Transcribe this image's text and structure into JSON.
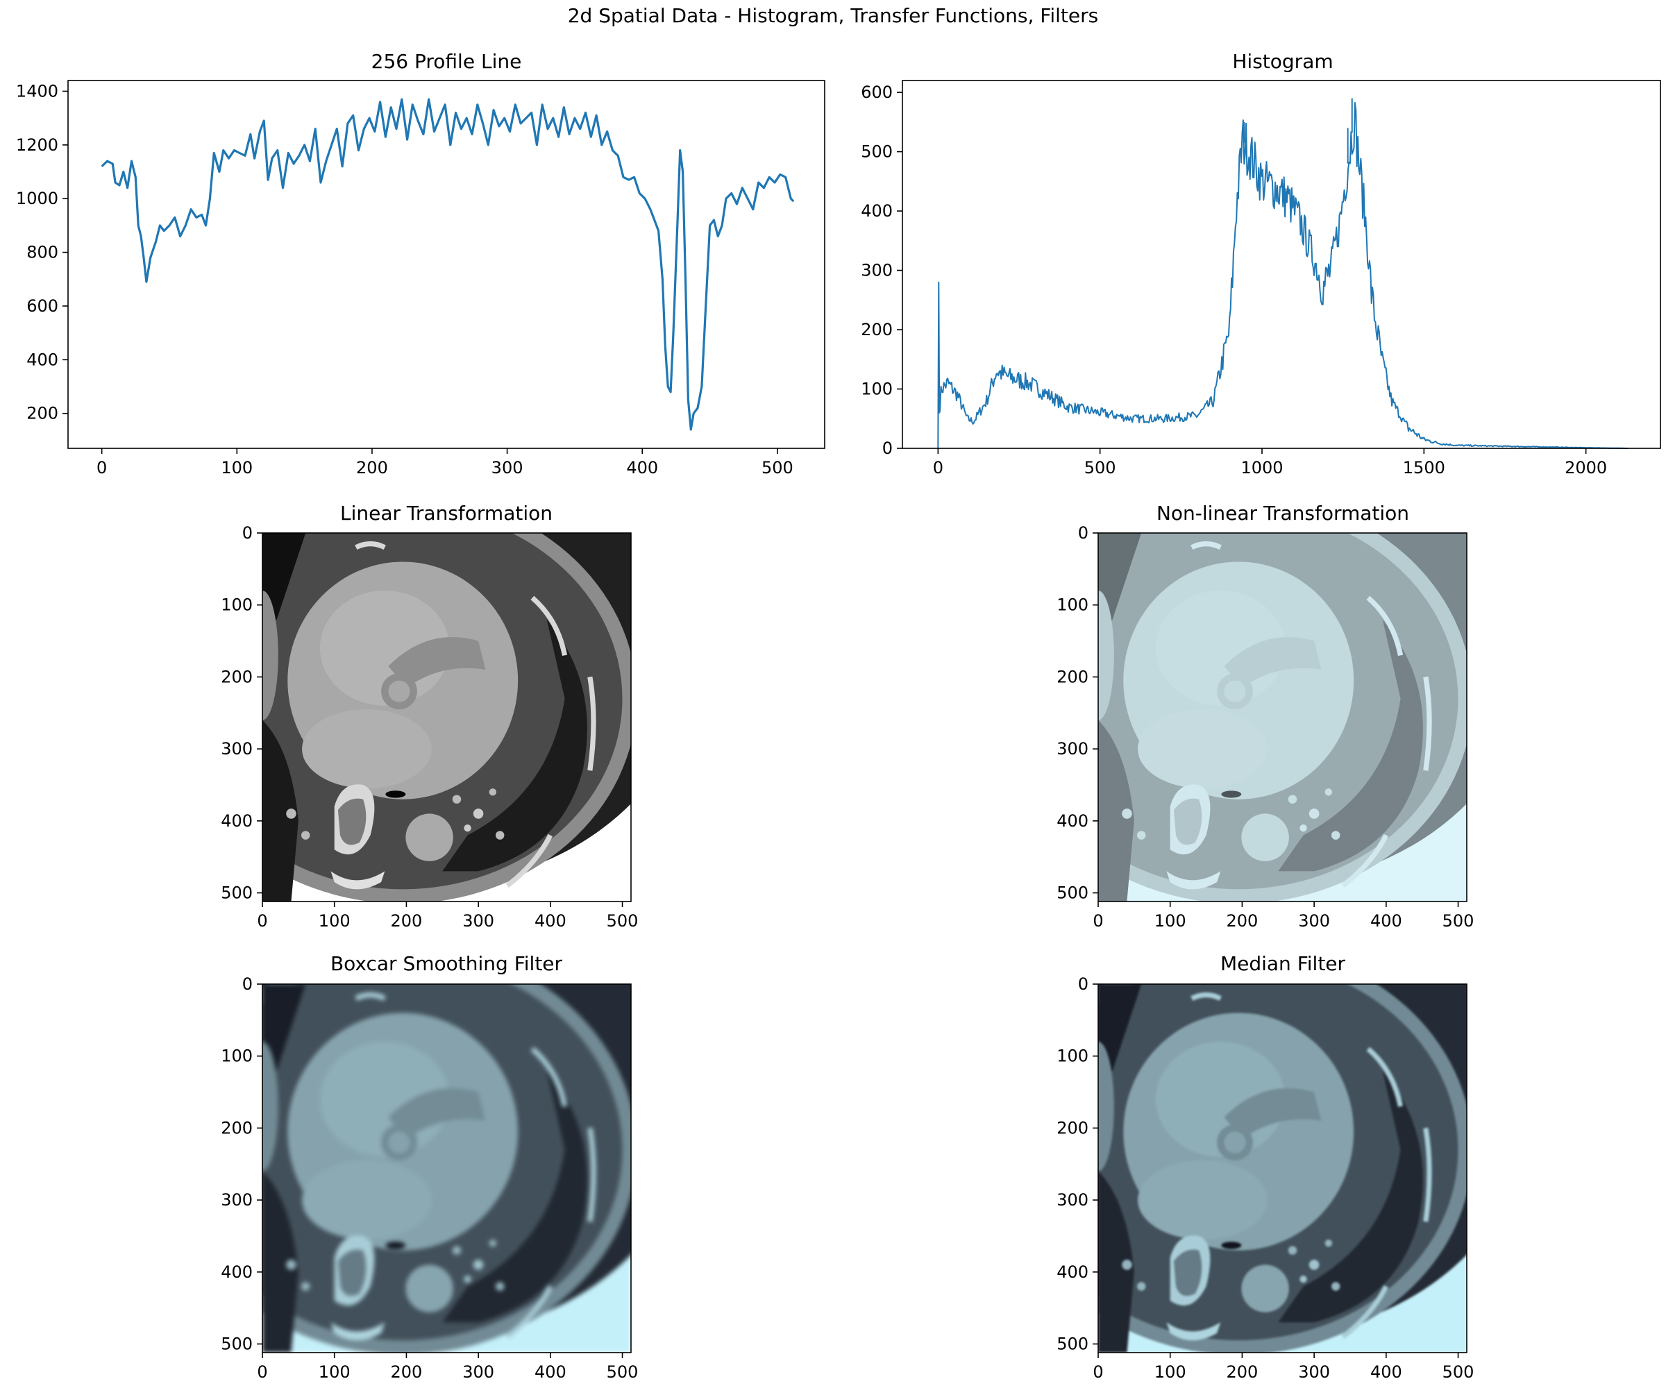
{
  "figure": {
    "title": "2d Spatial Data - Histogram, Transfer Functions, Filters"
  },
  "colors": {
    "line": "#1f77b4",
    "axes": "#000000"
  },
  "chart_data": [
    {
      "id": "profile",
      "type": "line",
      "title": "256 Profile Line",
      "xlim": [
        -25,
        535
      ],
      "ylim": [
        70,
        1440
      ],
      "xticks": [
        0,
        100,
        200,
        300,
        400,
        500
      ],
      "yticks": [
        200,
        400,
        600,
        800,
        1000,
        1200,
        1400
      ],
      "keypoints": [
        [
          0,
          1120
        ],
        [
          4,
          1140
        ],
        [
          8,
          1130
        ],
        [
          10,
          1060
        ],
        [
          13,
          1050
        ],
        [
          16,
          1100
        ],
        [
          19,
          1040
        ],
        [
          22,
          1140
        ],
        [
          25,
          1080
        ],
        [
          27,
          900
        ],
        [
          29,
          860
        ],
        [
          31,
          780
        ],
        [
          33,
          690
        ],
        [
          36,
          780
        ],
        [
          40,
          840
        ],
        [
          43,
          900
        ],
        [
          46,
          880
        ],
        [
          50,
          900
        ],
        [
          54,
          930
        ],
        [
          58,
          860
        ],
        [
          62,
          900
        ],
        [
          66,
          960
        ],
        [
          70,
          930
        ],
        [
          74,
          940
        ],
        [
          77,
          900
        ],
        [
          80,
          1000
        ],
        [
          83,
          1170
        ],
        [
          87,
          1100
        ],
        [
          90,
          1180
        ],
        [
          94,
          1150
        ],
        [
          98,
          1180
        ],
        [
          102,
          1170
        ],
        [
          106,
          1160
        ],
        [
          110,
          1240
        ],
        [
          113,
          1150
        ],
        [
          117,
          1250
        ],
        [
          120,
          1290
        ],
        [
          123,
          1070
        ],
        [
          126,
          1150
        ],
        [
          130,
          1180
        ],
        [
          134,
          1040
        ],
        [
          138,
          1170
        ],
        [
          142,
          1130
        ],
        [
          146,
          1160
        ],
        [
          150,
          1200
        ],
        [
          154,
          1140
        ],
        [
          158,
          1260
        ],
        [
          162,
          1060
        ],
        [
          166,
          1140
        ],
        [
          170,
          1200
        ],
        [
          174,
          1260
        ],
        [
          178,
          1120
        ],
        [
          182,
          1280
        ],
        [
          186,
          1310
        ],
        [
          190,
          1180
        ],
        [
          194,
          1260
        ],
        [
          198,
          1300
        ],
        [
          202,
          1250
        ],
        [
          206,
          1360
        ],
        [
          210,
          1230
        ],
        [
          214,
          1340
        ],
        [
          218,
          1260
        ],
        [
          222,
          1370
        ],
        [
          226,
          1220
        ],
        [
          230,
          1350
        ],
        [
          234,
          1290
        ],
        [
          238,
          1240
        ],
        [
          242,
          1370
        ],
        [
          246,
          1250
        ],
        [
          250,
          1300
        ],
        [
          254,
          1350
        ],
        [
          258,
          1200
        ],
        [
          262,
          1320
        ],
        [
          266,
          1260
        ],
        [
          270,
          1300
        ],
        [
          274,
          1240
        ],
        [
          278,
          1350
        ],
        [
          282,
          1280
        ],
        [
          286,
          1200
        ],
        [
          290,
          1330
        ],
        [
          294,
          1270
        ],
        [
          298,
          1300
        ],
        [
          302,
          1250
        ],
        [
          306,
          1350
        ],
        [
          310,
          1280
        ],
        [
          314,
          1300
        ],
        [
          318,
          1320
        ],
        [
          322,
          1200
        ],
        [
          326,
          1350
        ],
        [
          330,
          1260
        ],
        [
          334,
          1300
        ],
        [
          338,
          1230
        ],
        [
          342,
          1340
        ],
        [
          346,
          1240
        ],
        [
          350,
          1300
        ],
        [
          354,
          1260
        ],
        [
          358,
          1320
        ],
        [
          362,
          1230
        ],
        [
          366,
          1310
        ],
        [
          370,
          1200
        ],
        [
          374,
          1250
        ],
        [
          378,
          1180
        ],
        [
          382,
          1160
        ],
        [
          386,
          1080
        ],
        [
          390,
          1070
        ],
        [
          394,
          1080
        ],
        [
          398,
          1020
        ],
        [
          402,
          1000
        ],
        [
          406,
          960
        ],
        [
          409,
          920
        ],
        [
          412,
          880
        ],
        [
          415,
          700
        ],
        [
          417,
          450
        ],
        [
          419,
          300
        ],
        [
          421,
          280
        ],
        [
          423,
          500
        ],
        [
          426,
          900
        ],
        [
          428,
          1180
        ],
        [
          430,
          1100
        ],
        [
          432,
          700
        ],
        [
          434,
          250
        ],
        [
          436,
          140
        ],
        [
          438,
          200
        ],
        [
          441,
          220
        ],
        [
          444,
          300
        ],
        [
          447,
          600
        ],
        [
          450,
          900
        ],
        [
          453,
          920
        ],
        [
          456,
          860
        ],
        [
          459,
          900
        ],
        [
          462,
          1000
        ],
        [
          466,
          1020
        ],
        [
          470,
          980
        ],
        [
          474,
          1040
        ],
        [
          478,
          1000
        ],
        [
          482,
          960
        ],
        [
          486,
          1060
        ],
        [
          490,
          1040
        ],
        [
          494,
          1080
        ],
        [
          498,
          1060
        ],
        [
          502,
          1090
        ],
        [
          506,
          1080
        ],
        [
          510,
          1000
        ],
        [
          512,
          990
        ]
      ]
    },
    {
      "id": "histogram",
      "type": "line",
      "title": "Histogram",
      "xlim": [
        -110,
        2230
      ],
      "ylim": [
        0,
        620
      ],
      "xticks": [
        0,
        500,
        1000,
        1500,
        2000
      ],
      "yticks": [
        0,
        100,
        200,
        300,
        400,
        500,
        600
      ],
      "keypoints": [
        [
          0,
          0
        ],
        [
          2,
          280
        ],
        [
          4,
          60
        ],
        [
          10,
          100
        ],
        [
          30,
          110
        ],
        [
          60,
          90
        ],
        [
          90,
          50
        ],
        [
          110,
          45
        ],
        [
          150,
          80
        ],
        [
          180,
          130
        ],
        [
          220,
          120
        ],
        [
          280,
          110
        ],
        [
          340,
          90
        ],
        [
          400,
          70
        ],
        [
          500,
          60
        ],
        [
          600,
          50
        ],
        [
          700,
          50
        ],
        [
          800,
          55
        ],
        [
          850,
          80
        ],
        [
          900,
          200
        ],
        [
          920,
          400
        ],
        [
          940,
          520
        ],
        [
          960,
          500
        ],
        [
          1000,
          450
        ],
        [
          1040,
          440
        ],
        [
          1080,
          420
        ],
        [
          1120,
          380
        ],
        [
          1160,
          320
        ],
        [
          1190,
          270
        ],
        [
          1210,
          300
        ],
        [
          1240,
          380
        ],
        [
          1270,
          500
        ],
        [
          1285,
          560
        ],
        [
          1300,
          480
        ],
        [
          1320,
          380
        ],
        [
          1340,
          250
        ],
        [
          1370,
          150
        ],
        [
          1400,
          80
        ],
        [
          1450,
          35
        ],
        [
          1500,
          15
        ],
        [
          1550,
          8
        ],
        [
          1600,
          5
        ],
        [
          1800,
          3
        ],
        [
          2000,
          1
        ],
        [
          2130,
          0
        ]
      ],
      "spikes": [
        [
          2,
          280
        ],
        [
          1278,
          590
        ],
        [
          945,
          550
        ],
        [
          1265,
          540
        ]
      ]
    },
    {
      "id": "linear",
      "type": "heatmap",
      "title": "Linear Transformation",
      "xlim": [
        0,
        512
      ],
      "ylim": [
        512,
        0
      ],
      "xticks": [
        0,
        100,
        200,
        300,
        400,
        500
      ],
      "yticks": [
        0,
        100,
        200,
        300,
        400,
        500
      ],
      "colormap": "gray"
    },
    {
      "id": "nonlinear",
      "type": "heatmap",
      "title": "Non-linear Transformation",
      "xlim": [
        0,
        512
      ],
      "ylim": [
        512,
        0
      ],
      "xticks": [
        0,
        100,
        200,
        300,
        400,
        500
      ],
      "yticks": [
        0,
        100,
        200,
        300,
        400,
        500
      ],
      "colormap": "bone-light"
    },
    {
      "id": "boxcar",
      "type": "heatmap",
      "title": "Boxcar Smoothing Filter",
      "xlim": [
        0,
        512
      ],
      "ylim": [
        512,
        0
      ],
      "xticks": [
        0,
        100,
        200,
        300,
        400,
        500
      ],
      "yticks": [
        0,
        100,
        200,
        300,
        400,
        500
      ],
      "colormap": "bone"
    },
    {
      "id": "median",
      "type": "heatmap",
      "title": "Median Filter",
      "xlim": [
        0,
        512
      ],
      "ylim": [
        512,
        0
      ],
      "xticks": [
        0,
        100,
        200,
        300,
        400,
        500
      ],
      "yticks": [
        0,
        100,
        200,
        300,
        400,
        500
      ],
      "colormap": "bone"
    }
  ]
}
